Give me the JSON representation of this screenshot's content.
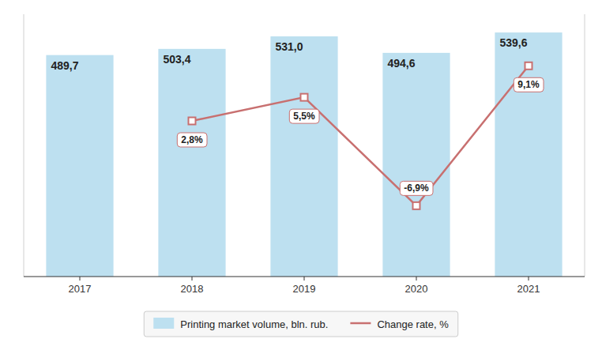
{
  "chart_data": {
    "type": "bar",
    "categories": [
      "2017",
      "2018",
      "2019",
      "2020",
      "2021"
    ],
    "series": [
      {
        "name": "Printing market volume, bln. rub.",
        "type": "bar",
        "color": "#bde0f0",
        "values": [
          489.7,
          503.4,
          531.0,
          494.6,
          539.6
        ],
        "value_labels": [
          "489,7",
          "503,4",
          "531,0",
          "494,6",
          "539,6"
        ]
      },
      {
        "name": "Change rate, %",
        "type": "line",
        "axis": "y2",
        "color": "#c87070",
        "marker": "square",
        "values": [
          null,
          2.8,
          5.5,
          -6.9,
          9.1
        ],
        "value_labels": [
          null,
          "2,8%",
          "5,5%",
          "-6,9%",
          "9,1%"
        ]
      }
    ],
    "ylim": [
      0,
      580
    ],
    "y2lim": [
      -15,
      15
    ],
    "data_labels": true,
    "tick_labels": "x",
    "legend": "bottom"
  }
}
